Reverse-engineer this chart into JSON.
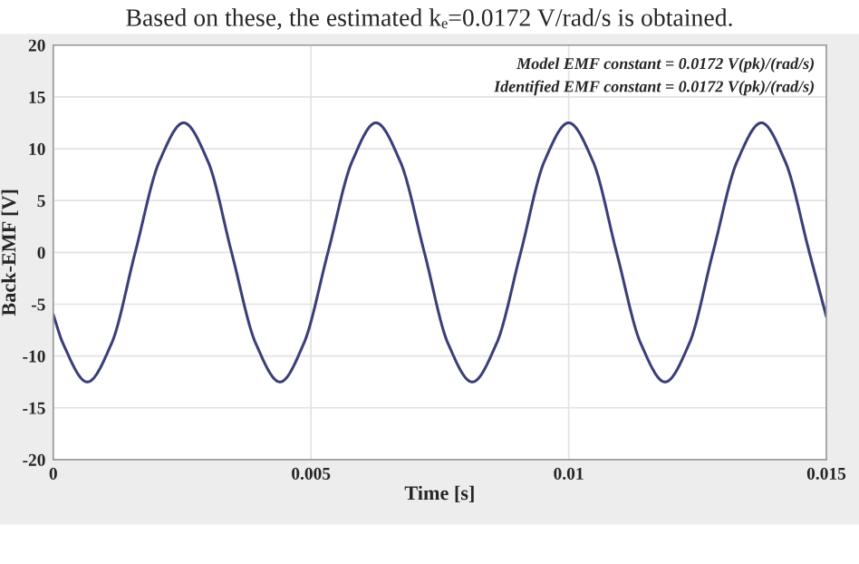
{
  "chart_data": {
    "type": "line",
    "xlabel": "Time [s]",
    "ylabel": "Back-EMF [V]",
    "annotations": [
      "Based on these, the estimated kₑ=0.0172 V/rad/s is obtained.",
      "Model EMF constant = 0.0172 V(pk)/(rad/s)",
      "Identified EMF constant = 0.0172 V(pk)/(rad/s)"
    ],
    "x": [
      0,
      0.00019,
      0.00066,
      0.00113,
      0.00159,
      0.00206,
      0.00253,
      0.003,
      0.00346,
      0.00393,
      0.0044,
      0.00486,
      0.00533,
      0.0058,
      0.00626,
      0.00673,
      0.0072,
      0.00766,
      0.00813,
      0.0086,
      0.00907,
      0.00953,
      0.01,
      0.01047,
      0.01093,
      0.0114,
      0.01187,
      0.01234,
      0.0128,
      0.01327,
      0.01374,
      0.0142,
      0.01467,
      0.015
    ],
    "series": [
      {
        "color": "#3b3f78",
        "values": [
          -6,
          -8.8,
          -12.5,
          -8.8,
          0,
          8.8,
          12.5,
          8.8,
          0,
          -8.8,
          -12.5,
          -8.8,
          0,
          8.8,
          12.5,
          8.8,
          0,
          -8.8,
          -12.5,
          -8.8,
          0,
          8.8,
          12.5,
          8.8,
          0,
          -8.8,
          -12.5,
          -8.8,
          0,
          8.8,
          12.5,
          8.8,
          0,
          -6.2
        ]
      }
    ],
    "xlim": [
      0,
      0.015
    ],
    "xticks": [
      0,
      0.005,
      0.01,
      0.015
    ],
    "ylim": [
      -20,
      20
    ],
    "yticks": [
      -20,
      -15,
      -10,
      -5,
      0,
      5,
      10,
      15,
      20
    ],
    "grid": true,
    "marker": "none",
    "line_style": "solid"
  }
}
